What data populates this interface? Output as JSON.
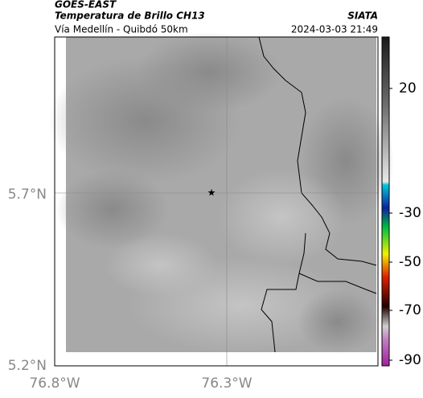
{
  "header": {
    "source": "GOES-EAST",
    "title": "Temperatura de Brillo CH13",
    "subtitle": "Vía Medellín - Quibdó 50km",
    "agency": "SIATA",
    "datetime": "2024-03-03 21:49"
  },
  "map": {
    "lat_labels": [
      "5.7°N",
      "5.2°N"
    ],
    "lon_labels": [
      "76.8°W",
      "76.3°W"
    ],
    "marker": "★"
  },
  "colorbar": {
    "tick_labels": [
      "20",
      "-30",
      "-50",
      "-70",
      "-90"
    ]
  }
}
